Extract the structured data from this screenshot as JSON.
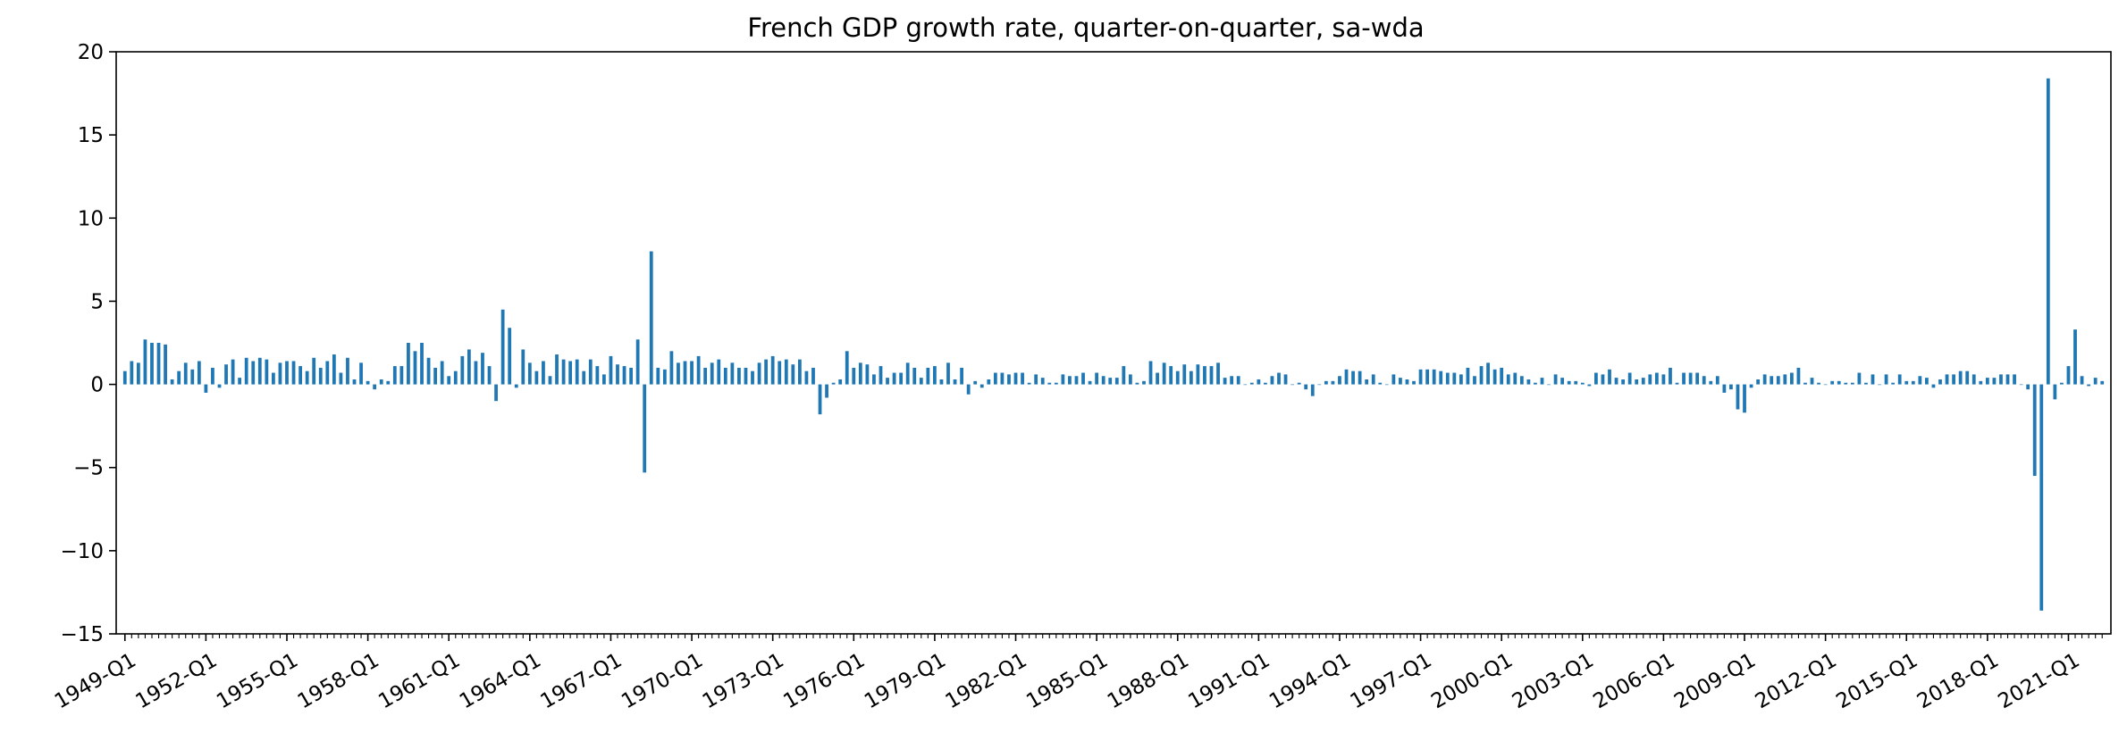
{
  "chart_data": {
    "type": "bar",
    "title": "French GDP growth rate, quarter-on-quarter, sa-wda",
    "xlabel": "",
    "ylabel": "",
    "ylim": [
      -15,
      20
    ],
    "yticks": [
      "20",
      "15",
      "10",
      "5",
      "0",
      "−5",
      "−10",
      "−15"
    ],
    "ytick_values": [
      20,
      15,
      10,
      5,
      0,
      -5,
      -10,
      -15
    ],
    "x_start": "1949-Q1",
    "x_end": "2022-Q4",
    "xtick_labels": [
      "1949-Q1",
      "1952-Q1",
      "1955-Q1",
      "1958-Q1",
      "1961-Q1",
      "1964-Q1",
      "1967-Q1",
      "1970-Q1",
      "1973-Q1",
      "1976-Q1",
      "1979-Q1",
      "1982-Q1",
      "1985-Q1",
      "1988-Q1",
      "1991-Q1",
      "1994-Q1",
      "1997-Q1",
      "2000-Q1",
      "2003-Q1",
      "2006-Q1",
      "2009-Q1",
      "2012-Q1",
      "2015-Q1",
      "2018-Q1",
      "2021-Q1"
    ],
    "grid": false,
    "legend": "none",
    "bar_color": "#1f77b4",
    "values": [
      0.8,
      1.4,
      1.3,
      2.7,
      2.5,
      2.5,
      2.4,
      0.3,
      0.8,
      1.3,
      0.9,
      1.4,
      -0.5,
      1.0,
      -0.2,
      1.2,
      1.5,
      0.4,
      1.6,
      1.4,
      1.6,
      1.5,
      0.7,
      1.3,
      1.4,
      1.4,
      1.1,
      0.8,
      1.6,
      1.0,
      1.4,
      1.8,
      0.7,
      1.6,
      0.3,
      1.3,
      0.2,
      -0.3,
      0.3,
      0.2,
      1.1,
      1.1,
      2.5,
      2.0,
      2.5,
      1.6,
      1.0,
      1.4,
      0.5,
      0.8,
      1.7,
      2.1,
      1.4,
      1.9,
      1.1,
      -1.0,
      4.5,
      3.4,
      -0.2,
      2.1,
      1.3,
      0.8,
      1.4,
      0.5,
      1.8,
      1.5,
      1.4,
      1.5,
      0.8,
      1.5,
      1.1,
      0.6,
      1.7,
      1.2,
      1.1,
      1.0,
      2.7,
      -5.3,
      8.0,
      1.0,
      0.9,
      2.0,
      1.3,
      1.4,
      1.4,
      1.7,
      1.0,
      1.3,
      1.5,
      1.0,
      1.3,
      1.0,
      1.0,
      0.8,
      1.3,
      1.5,
      1.7,
      1.4,
      1.5,
      1.2,
      1.5,
      0.8,
      1.0,
      -1.8,
      -0.8,
      0.1,
      0.3,
      2.0,
      1.0,
      1.3,
      1.2,
      0.6,
      1.1,
      0.4,
      0.7,
      0.7,
      1.3,
      1.0,
      0.4,
      1.0,
      1.1,
      0.3,
      1.3,
      0.3,
      1.0,
      -0.6,
      0.2,
      -0.2,
      0.3,
      0.7,
      0.7,
      0.6,
      0.7,
      0.7,
      0.1,
      0.6,
      0.4,
      0.1,
      0.1,
      0.6,
      0.5,
      0.5,
      0.7,
      0.2,
      0.7,
      0.5,
      0.4,
      0.4,
      1.1,
      0.6,
      0.1,
      0.2,
      1.4,
      0.7,
      1.3,
      1.1,
      0.8,
      1.2,
      0.8,
      1.2,
      1.1,
      1.1,
      1.3,
      0.4,
      0.5,
      0.5,
      0.0,
      0.1,
      0.3,
      0.1,
      0.5,
      0.7,
      0.6,
      0.0,
      0.1,
      -0.3,
      -0.7,
      0.0,
      0.2,
      0.2,
      0.5,
      0.9,
      0.8,
      0.8,
      0.3,
      0.6,
      0.1,
      0.0,
      0.6,
      0.4,
      0.3,
      0.2,
      0.9,
      0.9,
      0.9,
      0.8,
      0.7,
      0.7,
      0.6,
      1.0,
      0.5,
      1.1,
      1.3,
      0.9,
      1.0,
      0.6,
      0.7,
      0.5,
      0.3,
      0.1,
      0.4,
      0.0,
      0.6,
      0.4,
      0.2,
      0.2,
      0.1,
      -0.1,
      0.7,
      0.6,
      0.9,
      0.4,
      0.3,
      0.7,
      0.3,
      0.4,
      0.6,
      0.7,
      0.6,
      1.0,
      0.1,
      0.7,
      0.7,
      0.7,
      0.5,
      0.2,
      0.5,
      -0.5,
      -0.3,
      -1.5,
      -1.7,
      -0.2,
      0.3,
      0.6,
      0.5,
      0.5,
      0.6,
      0.7,
      1.0,
      0.1,
      0.4,
      0.1,
      0.0,
      0.2,
      0.2,
      0.1,
      0.1,
      0.7,
      0.1,
      0.6,
      0.0,
      0.6,
      0.1,
      0.6,
      0.2,
      0.2,
      0.5,
      0.4,
      -0.2,
      0.3,
      0.6,
      0.6,
      0.8,
      0.8,
      0.6,
      0.2,
      0.4,
      0.4,
      0.6,
      0.6,
      0.6,
      0.0,
      -0.3,
      -5.5,
      -13.6,
      18.4,
      -0.9,
      0.1,
      1.1,
      3.3,
      0.5,
      -0.1,
      0.4,
      0.2
    ]
  }
}
